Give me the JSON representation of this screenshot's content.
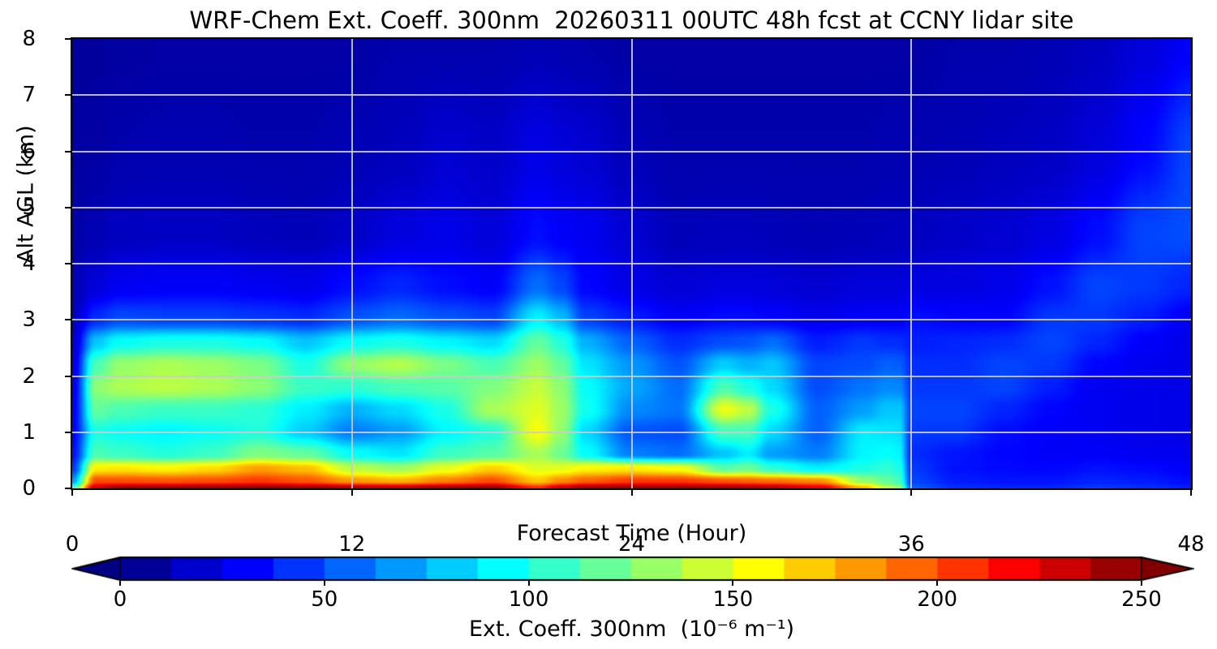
{
  "figure": {
    "title": "WRF-Chem Ext. Coeff. 300nm  20260311 00UTC 48h fcst at CCNY lidar site",
    "background": "#ffffff",
    "text_color": "#000000",
    "grid_color": "#cbcbcb"
  },
  "chart_data": {
    "type": "heatmap",
    "title": "WRF-Chem Ext. Coeff. 300nm  20260311 00UTC 48h fcst at CCNY lidar site",
    "xlabel": "Forecast Time (Hour)",
    "ylabel": "Alt AGL (km)",
    "x_range": [
      0,
      48
    ],
    "y_range": [
      0,
      8
    ],
    "xtick_values": [
      0,
      12,
      24,
      36,
      48
    ],
    "xtick_labels": [
      "0",
      "12",
      "24",
      "36",
      "48"
    ],
    "ytick_values": [
      0,
      1,
      2,
      3,
      4,
      5,
      6,
      7,
      8
    ],
    "ytick_labels": [
      "0",
      "1",
      "2",
      "3",
      "4",
      "5",
      "6",
      "7",
      "8"
    ],
    "grid": true,
    "grid_x_lines": [
      12,
      24,
      36
    ],
    "grid_y_lines": [
      1,
      2,
      3,
      4,
      5,
      6,
      7
    ],
    "colormap": "jet",
    "vmin": 0,
    "vmax": 250,
    "x_hours": [
      0,
      1,
      2,
      4,
      6,
      8,
      10,
      12,
      14,
      16,
      18,
      20,
      21,
      22,
      24,
      26,
      28,
      29,
      30,
      32,
      34,
      35,
      35.5,
      36,
      38,
      40,
      42,
      44,
      46,
      48
    ],
    "y_alt_km": [
      0,
      0.12,
      0.35,
      0.6,
      1.0,
      1.4,
      1.8,
      2.2,
      2.6,
      3.0,
      3.6,
      4.5,
      6.0,
      8.0
    ],
    "values_units": "10⁻⁶ m⁻¹",
    "values_by_alt": [
      [
        110,
        235,
        245,
        248,
        248,
        250,
        248,
        242,
        240,
        245,
        248,
        210,
        235,
        245,
        248,
        248,
        245,
        243,
        240,
        228,
        175,
        140,
        130,
        55,
        42,
        40,
        40,
        45,
        42,
        38
      ],
      [
        70,
        200,
        200,
        198,
        200,
        205,
        198,
        182,
        175,
        188,
        200,
        170,
        185,
        195,
        205,
        205,
        198,
        195,
        192,
        185,
        130,
        118,
        110,
        48,
        38,
        36,
        36,
        40,
        38,
        34
      ],
      [
        45,
        160,
        162,
        158,
        165,
        180,
        172,
        140,
        132,
        150,
        168,
        148,
        150,
        158,
        160,
        155,
        115,
        120,
        105,
        90,
        100,
        105,
        100,
        45,
        35,
        33,
        32,
        35,
        33,
        30
      ],
      [
        35,
        112,
        108,
        102,
        108,
        125,
        118,
        95,
        88,
        108,
        115,
        135,
        120,
        95,
        62,
        58,
        80,
        90,
        70,
        62,
        92,
        95,
        92,
        42,
        36,
        32,
        30,
        30,
        28,
        27
      ],
      [
        30,
        100,
        96,
        92,
        96,
        102,
        82,
        62,
        70,
        92,
        102,
        155,
        130,
        85,
        52,
        50,
        110,
        110,
        85,
        55,
        90,
        88,
        86,
        45,
        45,
        34,
        30,
        28,
        26,
        25
      ],
      [
        28,
        118,
        112,
        108,
        108,
        104,
        90,
        75,
        85,
        100,
        135,
        148,
        132,
        98,
        65,
        60,
        152,
        140,
        100,
        55,
        70,
        80,
        80,
        48,
        48,
        40,
        32,
        28,
        26,
        25
      ],
      [
        25,
        128,
        136,
        140,
        136,
        128,
        108,
        105,
        112,
        115,
        125,
        142,
        128,
        95,
        72,
        58,
        112,
        100,
        85,
        50,
        60,
        65,
        64,
        45,
        45,
        48,
        38,
        28,
        26,
        25
      ],
      [
        22,
        112,
        130,
        136,
        132,
        124,
        100,
        130,
        138,
        124,
        112,
        132,
        118,
        88,
        68,
        52,
        82,
        75,
        80,
        48,
        50,
        55,
        54,
        42,
        42,
        48,
        45,
        32,
        28,
        26
      ],
      [
        18,
        80,
        95,
        100,
        100,
        95,
        80,
        95,
        100,
        92,
        85,
        118,
        102,
        75,
        55,
        42,
        50,
        52,
        58,
        38,
        45,
        42,
        42,
        38,
        40,
        42,
        48,
        40,
        30,
        26
      ],
      [
        15,
        42,
        50,
        48,
        48,
        45,
        42,
        52,
        58,
        52,
        48,
        92,
        78,
        48,
        38,
        30,
        34,
        34,
        32,
        27,
        30,
        30,
        30,
        35,
        32,
        32,
        45,
        45,
        38,
        28
      ],
      [
        12,
        22,
        28,
        30,
        30,
        28,
        26,
        34,
        40,
        34,
        30,
        58,
        48,
        32,
        25,
        21,
        23,
        23,
        22,
        20,
        22,
        22,
        22,
        24,
        24,
        26,
        35,
        48,
        45,
        40
      ],
      [
        10,
        13,
        16,
        17,
        17,
        15,
        14,
        18,
        23,
        26,
        22,
        34,
        30,
        28,
        20,
        14,
        15,
        15,
        14,
        13,
        14,
        15,
        15,
        16,
        18,
        20,
        24,
        34,
        48,
        50
      ],
      [
        8,
        9,
        11,
        12,
        12,
        11,
        11,
        13,
        15,
        20,
        18,
        25,
        22,
        20,
        14,
        11,
        11,
        11,
        11,
        11,
        11,
        12,
        12,
        12,
        13,
        15,
        17,
        22,
        32,
        48
      ],
      [
        7,
        7,
        8,
        9,
        9,
        9,
        9,
        9,
        11,
        11,
        11,
        13,
        12,
        11,
        9,
        9,
        9,
        9,
        9,
        9,
        9,
        9,
        9,
        9,
        11,
        11,
        13,
        16,
        22,
        30
      ]
    ],
    "colorbar": {
      "ticks": [
        "0",
        "50",
        "100",
        "150",
        "200",
        "250"
      ],
      "tick_values": [
        0,
        50,
        100,
        150,
        200,
        250
      ],
      "label": "Ext. Coeff. 300nm  (10⁻⁶ m⁻¹)",
      "extend": "both",
      "levels_step": 12.5
    }
  }
}
